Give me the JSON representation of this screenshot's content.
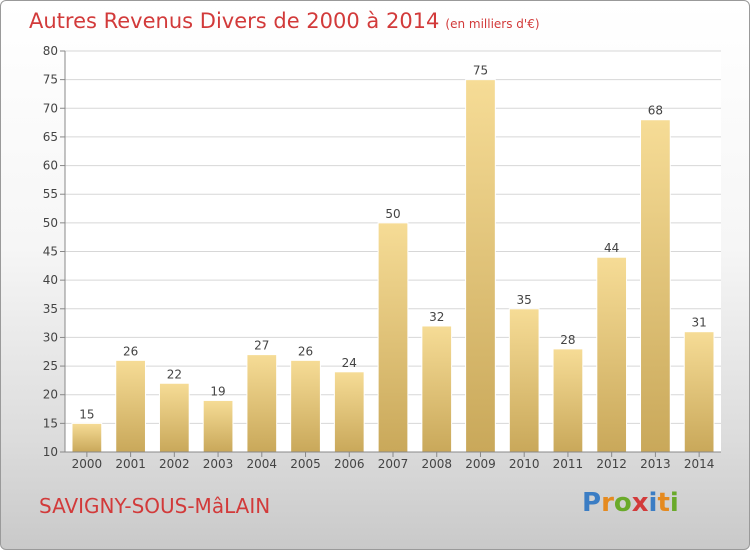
{
  "header": {
    "title": "Autres Revenus Divers de 2000 à 2014",
    "unit": "(en milliers d'€)"
  },
  "footer": {
    "place": "SAVIGNY-SOUS-MâLAIN"
  },
  "logo": {
    "letters": [
      {
        "char": "P",
        "color": "#3b7dc4"
      },
      {
        "char": "r",
        "color": "#e58a1f"
      },
      {
        "char": "o",
        "color": "#6aaa2a"
      },
      {
        "char": "x",
        "color": "#d23a3a"
      },
      {
        "char": "i",
        "color": "#3b7dc4"
      },
      {
        "char": "t",
        "color": "#e58a1f"
      },
      {
        "char": "i",
        "color": "#6aaa2a"
      }
    ]
  },
  "colors": {
    "title": "#d23a3a",
    "bar_light": "#f6dc96",
    "bar_dark": "#c9a85a",
    "grid": "#d7d7d7"
  },
  "chart_data": {
    "type": "bar",
    "categories": [
      "2000",
      "2001",
      "2002",
      "2003",
      "2004",
      "2005",
      "2006",
      "2007",
      "2008",
      "2009",
      "2010",
      "2011",
      "2012",
      "2013",
      "2014"
    ],
    "values": [
      15,
      26,
      22,
      19,
      27,
      26,
      24,
      50,
      32,
      75,
      35,
      28,
      44,
      68,
      31
    ],
    "yticks": [
      10,
      15,
      20,
      25,
      30,
      35,
      40,
      45,
      50,
      55,
      60,
      65,
      70,
      75,
      80
    ],
    "ylim": [
      10,
      80
    ],
    "grid": true,
    "legend": "none"
  }
}
